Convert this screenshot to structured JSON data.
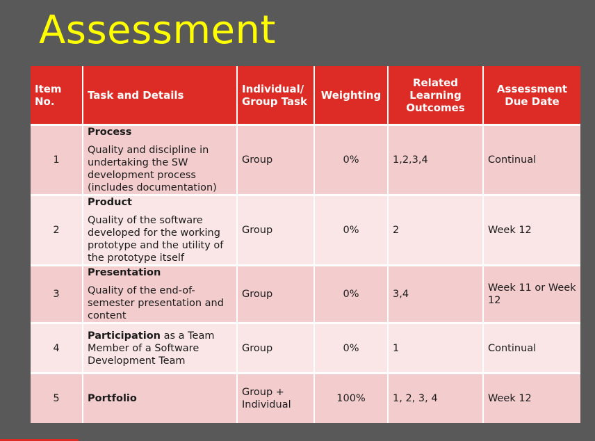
{
  "slide": {
    "title": "Assessment"
  },
  "table": {
    "headers": {
      "item_no": "Item No.",
      "task": "Task and Details",
      "individual_group": "Individual/ Group Task",
      "weighting": "Weighting",
      "outcomes": "Related Learning Outcomes",
      "due_date": "Assessment Due Date"
    },
    "rows": [
      {
        "item": "1",
        "task_title": "Process",
        "task_desc": "Quality and discipline in undertaking the SW development process (includes documentation)",
        "type": "Group",
        "weighting": "0%",
        "outcomes": "1,2,3,4",
        "due": "Continual"
      },
      {
        "item": "2",
        "task_title": "Product",
        "task_desc": "Quality of the software developed for the working prototype and the utility of the prototype itself",
        "type": "Group",
        "weighting": "0%",
        "outcomes": "2",
        "due": "Week 12"
      },
      {
        "item": "3",
        "task_title": "Presentation",
        "task_desc": "Quality of the end-of-semester presentation and content",
        "type": "Group",
        "weighting": "0%",
        "outcomes": "3,4",
        "due": "Week 11 or Week 12"
      },
      {
        "item": "4",
        "task_title": "Participation",
        "task_desc": " as a Team Member of a Software Development Team",
        "type": "Group",
        "weighting": "0%",
        "outcomes": "1",
        "due": "Continual"
      },
      {
        "item": "5",
        "task_title": "Portfolio",
        "task_desc": "",
        "type": "Group + Individual",
        "weighting": "100%",
        "outcomes": "1, 2, 3, 4",
        "due": "Week 12"
      }
    ]
  },
  "colors": {
    "background": "#595959",
    "title": "#ffff00",
    "header": "#dd2b26",
    "row_odd": "#f3cccd",
    "row_even": "#fae6e6"
  }
}
